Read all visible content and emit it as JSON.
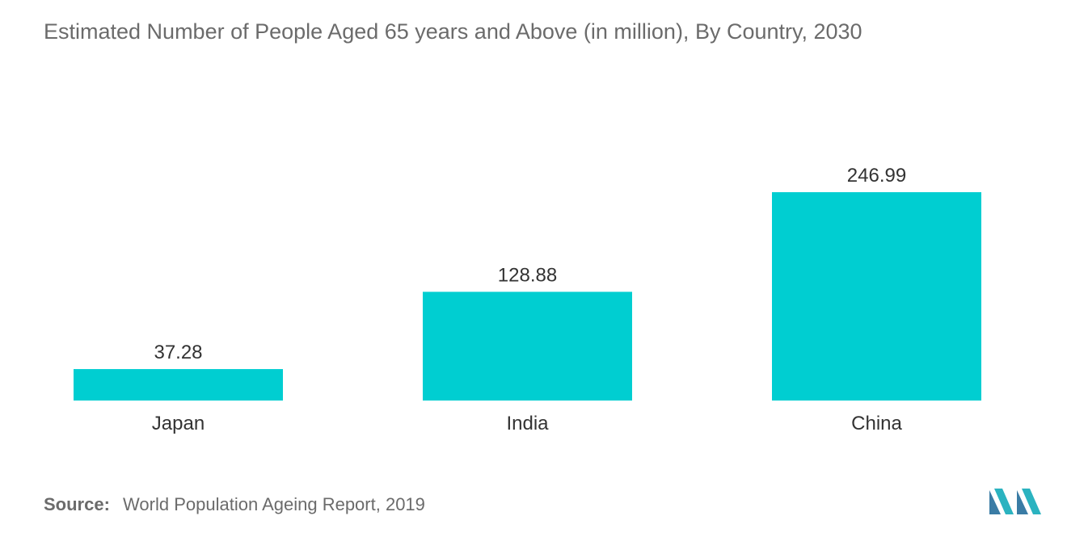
{
  "chart_data": {
    "type": "bar",
    "title": "Estimated Number of People Aged 65 years and Above  (in  million), By Country, 2030",
    "categories": [
      "Japan",
      "India",
      "China"
    ],
    "values": [
      37.28,
      128.88,
      246.99
    ],
    "data_labels": [
      "37.28",
      "128.88",
      "246.99"
    ],
    "xlabel": "",
    "ylabel": "",
    "ylim": [
      0,
      246.99
    ],
    "grid": false,
    "legend": "none",
    "bar_color": "#00CED1",
    "label_color": "#333333"
  },
  "source": {
    "label": "Source:",
    "text": "World Population Ageing Report, 2019"
  },
  "brand": {
    "logo_icon": "mordor-intelligence-logo-icon",
    "colors": [
      "#3A7CA5",
      "#2BB3C0"
    ]
  }
}
